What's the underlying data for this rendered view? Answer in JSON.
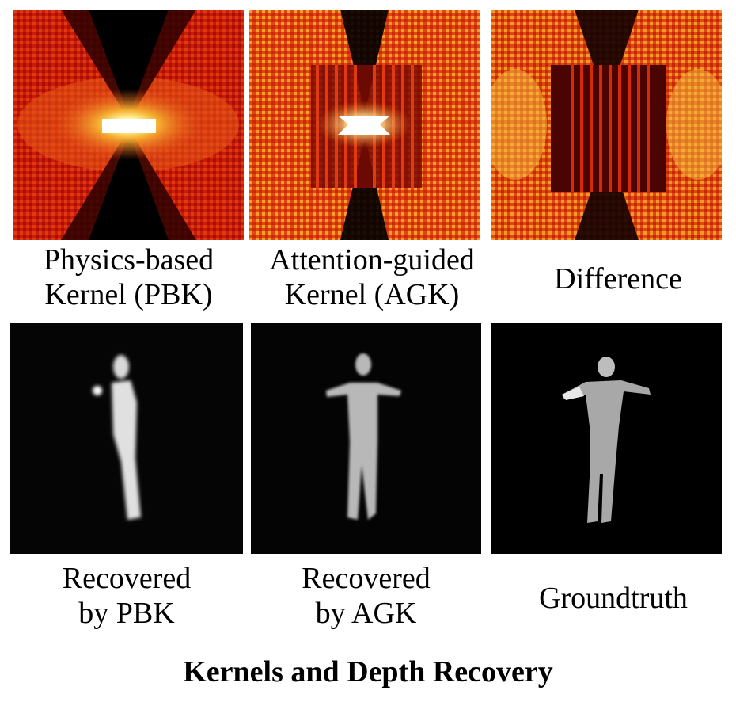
{
  "figure": {
    "title": "Kernels and Depth Recovery",
    "colors": {
      "dark_red": "#8b0000",
      "red": "#d8200a",
      "orange": "#f07820",
      "yellow": "#ffe060",
      "white": "#ffffff",
      "black": "#000000"
    },
    "top_row": [
      {
        "name": "physics-based-kernel",
        "caption_lines": [
          "Physics-based",
          "Kernel (PBK)"
        ]
      },
      {
        "name": "attention-guided-kernel",
        "caption_lines": [
          "Attention-guided",
          "Kernel (AGK)"
        ]
      },
      {
        "name": "difference",
        "caption_lines": [
          "Difference"
        ]
      }
    ],
    "bottom_row": [
      {
        "name": "recovered-by-pbk",
        "caption_lines": [
          "Recovered",
          "by PBK"
        ]
      },
      {
        "name": "recovered-by-agk",
        "caption_lines": [
          "Recovered",
          "by AGK"
        ]
      },
      {
        "name": "groundtruth",
        "caption_lines": [
          "Groundtruth"
        ]
      }
    ]
  }
}
